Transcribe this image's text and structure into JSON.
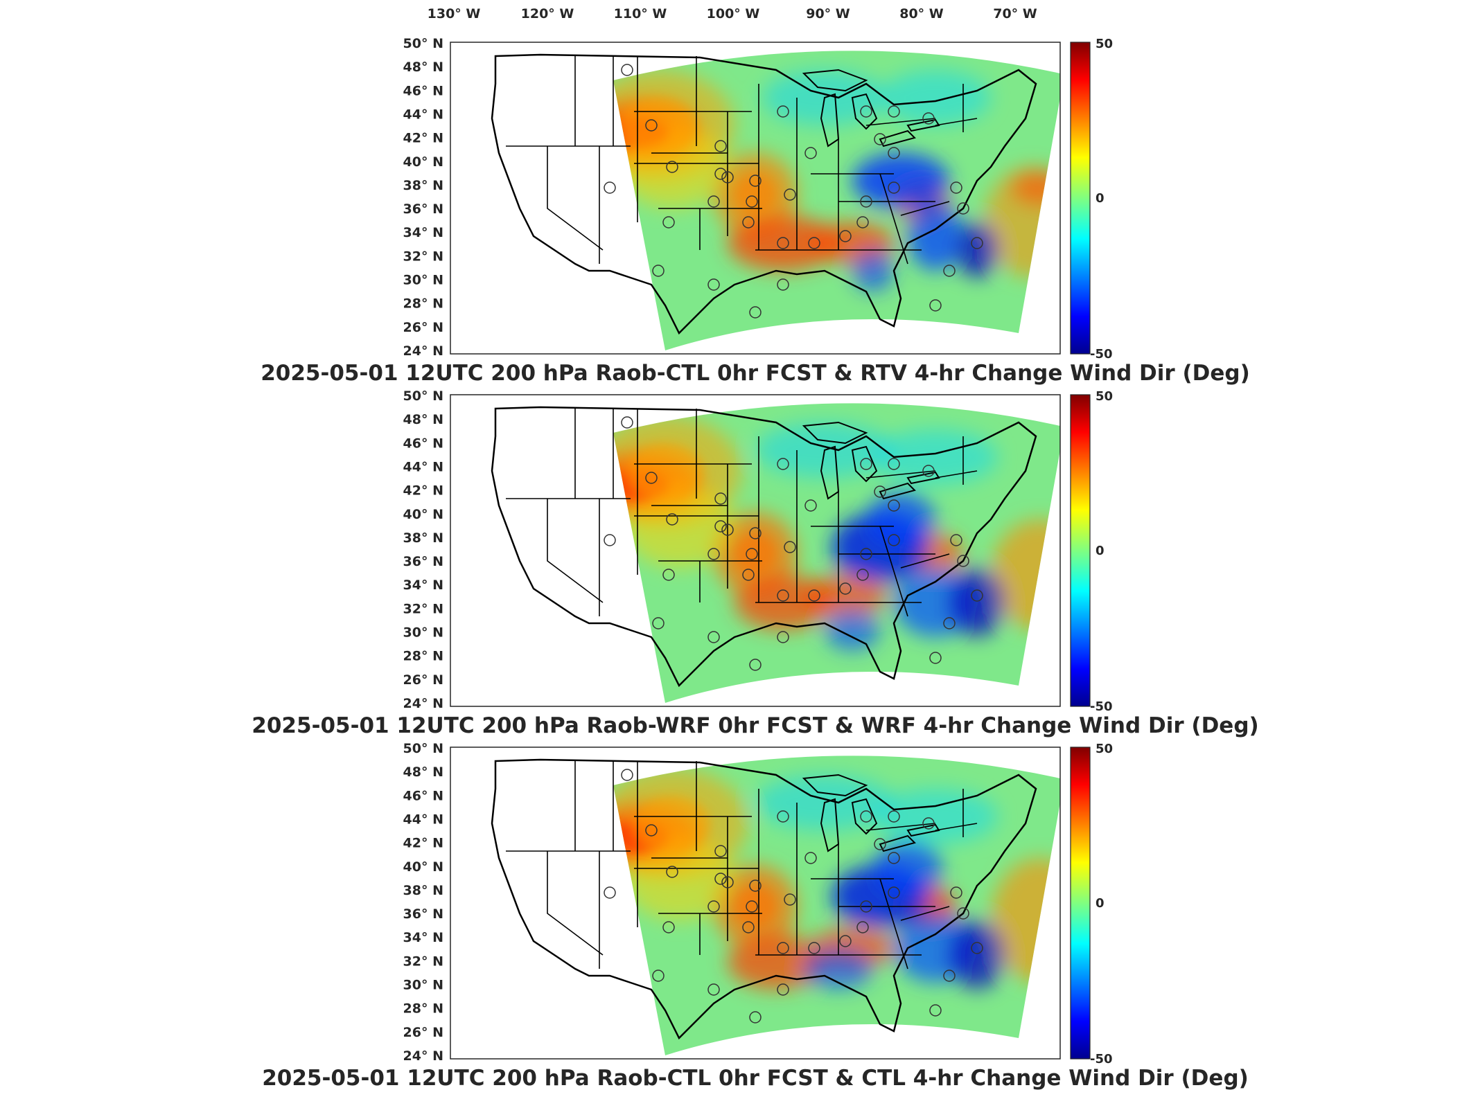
{
  "top_lon_labels": [
    "130° W",
    "120° W",
    "110° W",
    "100° W",
    "90° W",
    "80° W",
    "70° W"
  ],
  "lat_labels": [
    "50° N",
    "48° N",
    "46° N",
    "44° N",
    "42° N",
    "40° N",
    "38° N",
    "36° N",
    "34° N",
    "32° N",
    "30° N",
    "28° N",
    "26° N",
    "24° N"
  ],
  "colorbar": {
    "max_label": "50",
    "mid_label": "0",
    "min_label": "-50",
    "colors": [
      "#00008f",
      "#0000ff",
      "#00ffff",
      "#80ff80",
      "#ffff00",
      "#ff0000",
      "#800000"
    ]
  },
  "panels": [
    {
      "title": "2025-05-01 12UTC 200 hPa Raob-CTL 0hr FCST & RTV 4-hr Change Wind Dir (Deg)"
    },
    {
      "title": "2025-05-01 12UTC 200 hPa Raob-WRF 0hr FCST & WRF 4-hr Change Wind Dir (Deg)"
    },
    {
      "title": "2025-05-01 12UTC 200 hPa Raob-CTL 0hr FCST & CTL 4-hr Change Wind Dir (Deg)"
    }
  ],
  "colors": {
    "domain_base": "#7fe88a",
    "warm": "#ff6a00",
    "cool": "#1a6bff",
    "outline": "#000000"
  },
  "raob_station_markers": "circle"
}
